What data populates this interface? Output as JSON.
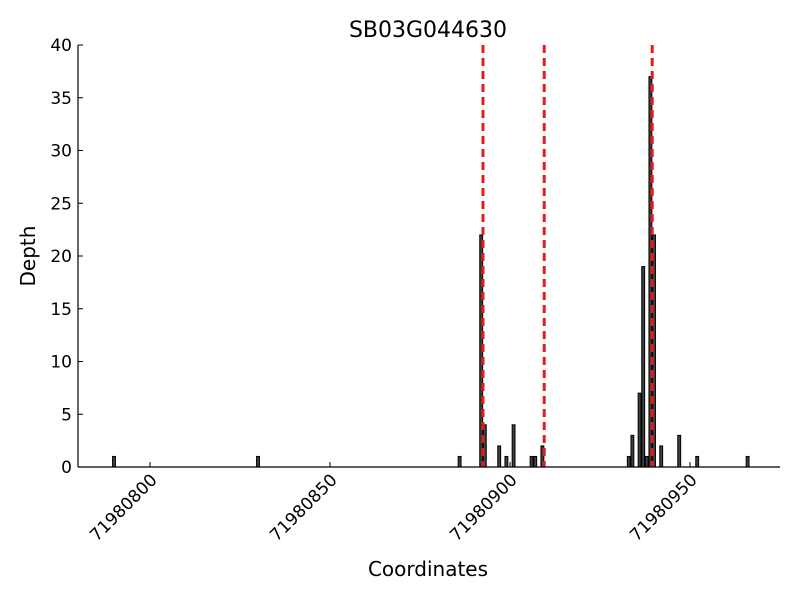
{
  "chart_data": {
    "type": "bar",
    "title": "SB03G044630",
    "x_label": "Coordinates",
    "y_label": "Depth",
    "x": [
      71980790,
      71980830,
      71980886,
      71980892,
      71980893,
      71980897,
      71980899,
      71980901,
      71980906,
      71980907,
      71980909,
      71980933,
      71980934,
      71980936,
      71980937,
      71980938,
      71980939,
      71980940,
      71980942,
      71980947,
      71980952,
      71980966
    ],
    "values": [
      1,
      1,
      1,
      22,
      4,
      2,
      1,
      4,
      1,
      1,
      2,
      1,
      3,
      7,
      19,
      1,
      37,
      22,
      2,
      3,
      1,
      1
    ],
    "color": "#404040",
    "vlines": [
      71980892.5,
      71980909.5,
      71980939.5
    ],
    "vline_color": "#e41a1c",
    "xlim": [
      71980780,
      71980975
    ],
    "xticks": [
      71980800,
      71980850,
      71980900,
      71980950
    ],
    "ylim": [
      0,
      40
    ],
    "yticks": [
      0,
      5,
      10,
      15,
      20,
      25,
      30,
      35,
      40
    ]
  }
}
